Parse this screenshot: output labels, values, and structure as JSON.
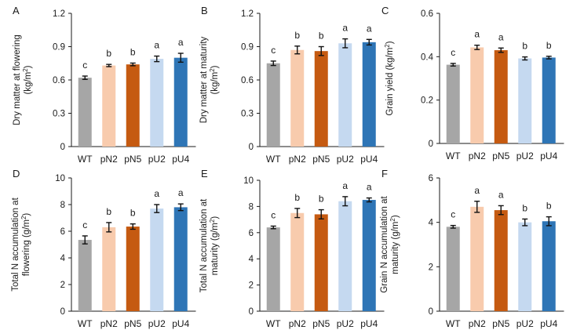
{
  "colors": {
    "WT": "#a6a6a6",
    "pN2": "#f8cbad",
    "pN5": "#c55a11",
    "pU2": "#c5d9f0",
    "pU4": "#2e75b6",
    "axis": "#1a1a1a"
  },
  "chart_data": [
    {
      "panel": "A",
      "type": "bar",
      "ylabel_lines": [
        "Dry matter at flowering",
        "(kg/m²)"
      ],
      "categories": [
        "WT",
        "pN2",
        "pN5",
        "pU2",
        "pU4"
      ],
      "values": [
        0.62,
        0.73,
        0.74,
        0.79,
        0.8
      ],
      "errors": [
        0.015,
        0.01,
        0.012,
        0.025,
        0.04
      ],
      "letters": [
        "c",
        "b",
        "b",
        "a",
        "a"
      ],
      "ylim": [
        0,
        1.2
      ],
      "yticks": [
        "0",
        "0.3",
        "0.6",
        "0.9",
        "1.2"
      ]
    },
    {
      "panel": "B",
      "type": "bar",
      "ylabel_lines": [
        "Dry matter at maturity",
        "(kg/m²)"
      ],
      "categories": [
        "WT",
        "pN2",
        "pN5",
        "pU2",
        "pU4"
      ],
      "values": [
        0.75,
        0.87,
        0.86,
        0.93,
        0.94
      ],
      "errors": [
        0.02,
        0.035,
        0.04,
        0.04,
        0.025
      ],
      "letters": [
        "c",
        "b",
        "b",
        "a",
        "a"
      ],
      "ylim": [
        0,
        1.2
      ],
      "yticks": [
        "0",
        "0.3",
        "0.6",
        "0.9",
        "1.2"
      ]
    },
    {
      "panel": "C",
      "type": "bar",
      "ylabel_lines": [
        "Grain yield (kg/m²)"
      ],
      "categories": [
        "WT",
        "pN2",
        "pN5",
        "pU2",
        "pU4"
      ],
      "values": [
        0.363,
        0.443,
        0.43,
        0.392,
        0.396
      ],
      "errors": [
        0.006,
        0.01,
        0.01,
        0.007,
        0.006
      ],
      "letters": [
        "c",
        "a",
        "a",
        "b",
        "b"
      ],
      "ylim": [
        0,
        0.6
      ],
      "yticks": [
        "0",
        "0.2",
        "0.4",
        "0.6"
      ]
    },
    {
      "panel": "D",
      "type": "bar",
      "ylabel_lines": [
        "Total N accumulation at",
        "flowering (g/m²)"
      ],
      "categories": [
        "WT",
        "pN2",
        "pN5",
        "pU2",
        "pU4"
      ],
      "values": [
        5.35,
        6.3,
        6.35,
        7.7,
        7.8
      ],
      "errors": [
        0.3,
        0.35,
        0.2,
        0.3,
        0.25
      ],
      "letters": [
        "c",
        "b",
        "b",
        "a",
        "a"
      ],
      "ylim": [
        0,
        10
      ],
      "yticks": [
        "0",
        "2",
        "4",
        "6",
        "8",
        "10"
      ]
    },
    {
      "panel": "E",
      "type": "bar",
      "ylabel_lines": [
        "Total N accumulation at",
        "maturity (g/m²)"
      ],
      "categories": [
        "WT",
        "pN2",
        "pN5",
        "pU2",
        "pU4"
      ],
      "values": [
        6.4,
        7.5,
        7.4,
        8.4,
        8.5
      ],
      "errors": [
        0.1,
        0.35,
        0.35,
        0.35,
        0.15
      ],
      "letters": [
        "c",
        "b",
        "b",
        "a",
        "a"
      ],
      "ylim": [
        0,
        10
      ],
      "yticks": [
        "0",
        "2",
        "4",
        "6",
        "8",
        "10"
      ]
    },
    {
      "panel": "F",
      "type": "bar",
      "ylabel_lines": [
        "Grain N accumulation at",
        "maturity (g/m²)"
      ],
      "categories": [
        "WT",
        "pN2",
        "pN5",
        "pU2",
        "pU4"
      ],
      "values": [
        3.8,
        4.7,
        4.55,
        4.0,
        4.05
      ],
      "errors": [
        0.06,
        0.25,
        0.2,
        0.15,
        0.2
      ],
      "letters": [
        "c",
        "a",
        "a",
        "b",
        "b"
      ],
      "ylim": [
        0,
        6
      ],
      "yticks": [
        "0",
        "2",
        "4",
        "6"
      ]
    }
  ]
}
